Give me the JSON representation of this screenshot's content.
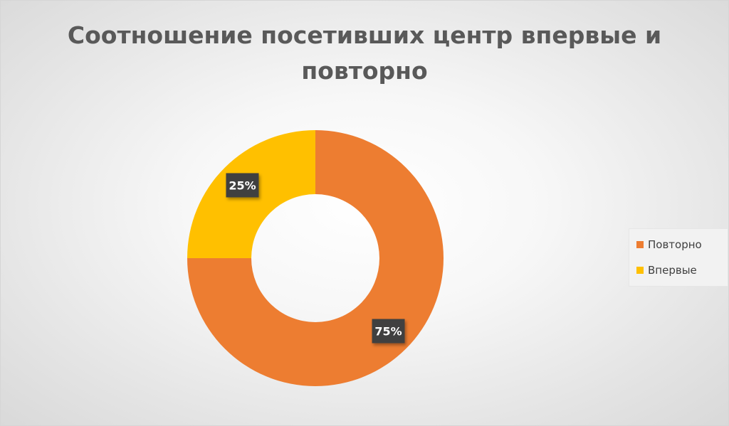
{
  "chart_data": {
    "type": "pie",
    "subtype": "doughnut",
    "title": "Соотношение посетивших центр впервые и повторно",
    "categories": [
      "Повторно",
      "Впервые"
    ],
    "values": [
      75,
      25
    ],
    "data_labels": [
      "75%",
      "25%"
    ],
    "colors": [
      "#ed7d31",
      "#ffc000"
    ],
    "legend_position": "right",
    "start_angle_deg": 0,
    "direction": "clockwise"
  }
}
